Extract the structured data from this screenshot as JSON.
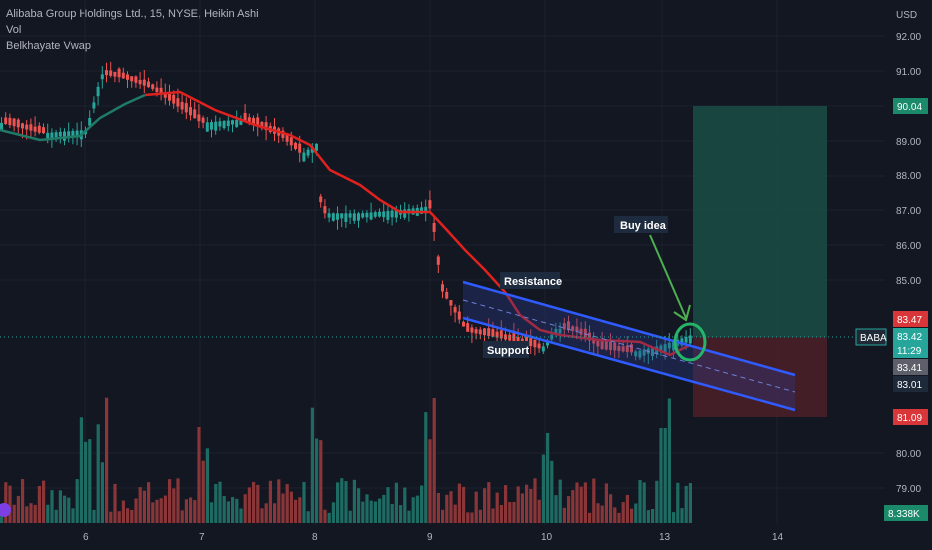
{
  "legend": {
    "symbol_line": "Alibaba Group Holdings Ltd., 15, NYSE, Heikin Ashi",
    "indicator_1": "Vol",
    "indicator_2": "Belkhayate Vwap"
  },
  "price_axis": {
    "currency": "USD",
    "ticks": [
      "92.00",
      "91.00",
      "89.00",
      "88.00",
      "87.00",
      "86.00",
      "85.00",
      "80.00",
      "79.00"
    ]
  },
  "price_tags": {
    "target": "90.04",
    "stop": "81.09",
    "entry": "83.47",
    "last": "83.42",
    "countdown": "11:29",
    "bid": "83.41",
    "level": "83.01",
    "volume": "8.338K",
    "symbol": "BABA"
  },
  "time_axis": {
    "labels": [
      "6",
      "7",
      "8",
      "9",
      "10",
      "13",
      "14"
    ]
  },
  "annotations": {
    "resistance": "Resistance",
    "support": "Support",
    "buy_idea": "Buy idea"
  },
  "colors": {
    "background": "#131722",
    "bull": "#26a69a",
    "bear": "#ef5350",
    "vwap_up": "#1f7a66",
    "vwap_down": "#e0221f",
    "channel": "#2f5bff",
    "target_zone": "#1a4a44",
    "stop_zone": "#4a1f28"
  },
  "chart_data": {
    "type": "candlestick",
    "style": "Heikin Ashi",
    "timeframe": "15",
    "x_labels": [
      "6",
      "7",
      "8",
      "9",
      "10",
      "13",
      "14"
    ],
    "ylim": [
      78.5,
      92.5
    ],
    "price_path": [
      {
        "x": "6",
        "close": 89.5
      },
      {
        "x": "6",
        "close": 91.0
      },
      {
        "x": "7",
        "close": 89.7
      },
      {
        "x": "8",
        "close": 88.7
      },
      {
        "x": "8",
        "close": 87.0
      },
      {
        "x": "9",
        "close": 87.0
      },
      {
        "x": "9",
        "close": 84.7
      },
      {
        "x": "9",
        "close": 83.5
      },
      {
        "x": "10",
        "close": 83.6
      },
      {
        "x": "10",
        "close": 83.4
      },
      {
        "x": "13",
        "close": 83.0
      },
      {
        "x": "13",
        "close": 83.4
      }
    ],
    "position": {
      "entry": 83.47,
      "target": 90.04,
      "stop": 81.09
    },
    "last_price": 83.42
  }
}
